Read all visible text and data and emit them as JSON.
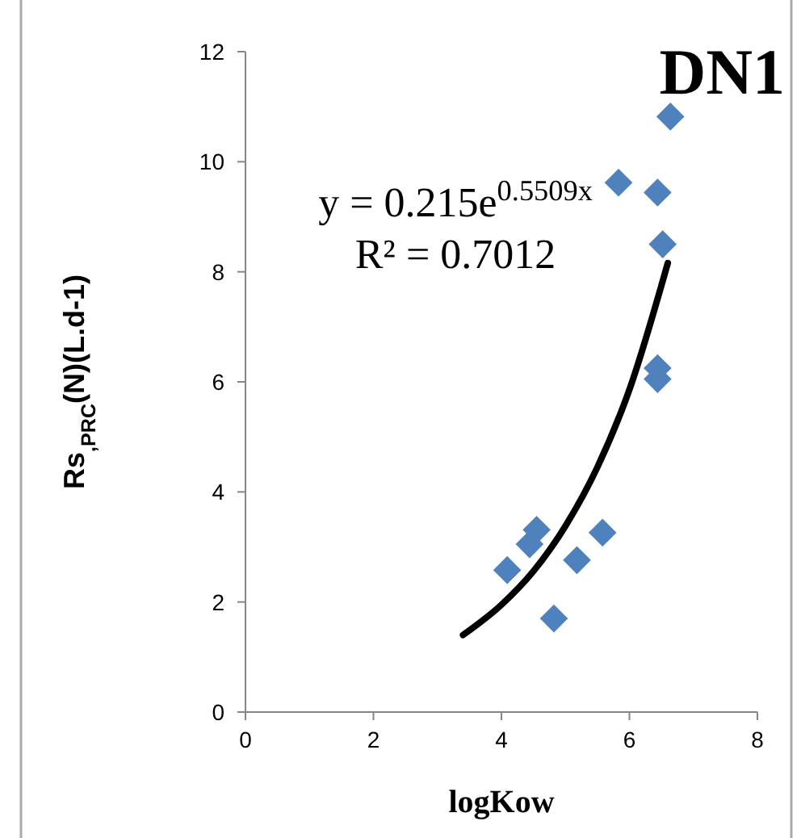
{
  "chart_data": {
    "type": "scatter",
    "title": "DN1",
    "xlabel": "logKow",
    "ylabel": "Rs$_{,PRC}$(N)(L.d-1)",
    "series": [
      {
        "color": "#4f81bd",
        "marker": "diamond",
        "x": [
          6.64,
          5.83,
          6.44,
          6.52,
          6.44,
          6.44,
          4.55,
          4.44,
          4.09,
          5.18,
          5.58,
          4.82
        ],
        "values": [
          10.82,
          9.62,
          9.44,
          8.5,
          6.25,
          6.05,
          3.31,
          3.05,
          2.58,
          2.76,
          3.26,
          1.7
        ]
      },
      {
        "type": "line",
        "color": "#000000",
        "x": [
          3.4,
          4,
          4.5,
          5,
          5.5,
          6,
          6.6
        ],
        "values": [
          1.4,
          1.95,
          2.56,
          3.38,
          4.45,
          5.86,
          8.16
        ]
      }
    ],
    "annotations": [
      "y = 0.215e$^{0.5509x}$",
      "R² = 0.7012"
    ],
    "xlim": [
      0,
      8
    ],
    "xticks": [
      0,
      2,
      4,
      6,
      8
    ],
    "ylim": [
      0,
      12
    ],
    "yticks": [
      0,
      2,
      4,
      6,
      8,
      10,
      12
    ],
    "grid": false
  }
}
